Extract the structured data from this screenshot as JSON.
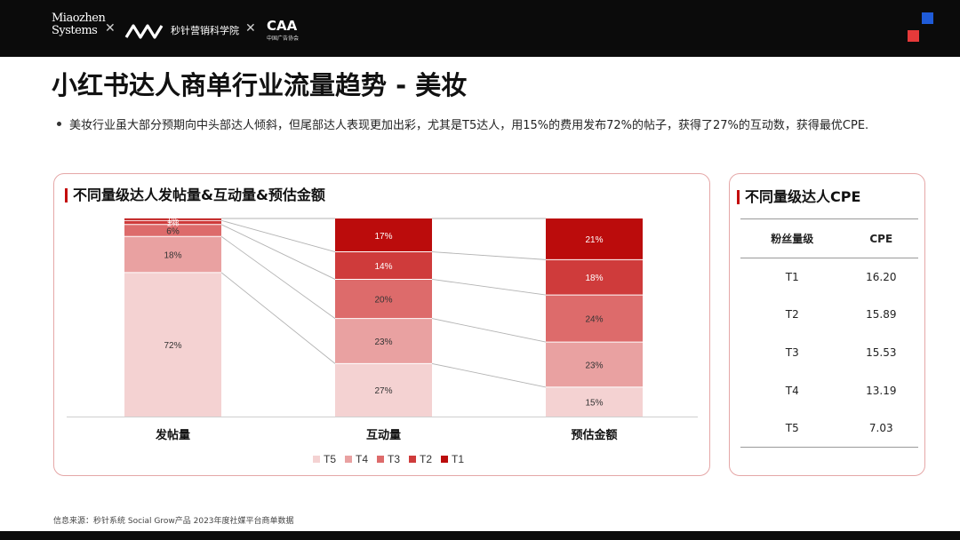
{
  "brand": {
    "miaozhen": "Miaozhen Systems",
    "academy": "秒针营销科学院",
    "caa": "CAA",
    "caa_sub": "中国广告协会"
  },
  "title": "小红书达人商单行业流量趋势 - 美妆",
  "bullet": "美妆行业虽大部分预期向中头部达人倾斜，但尾部达人表现更加出彩，尤其是T5达人，用15%的费用发布72%的帖子，获得了27%的互动数，获得最优CPE.",
  "left_card_title": "不同量级达人发帖量&互动量&预估金额",
  "right_card_title": "不同量级达人CPE",
  "chart_data": [
    {
      "type": "bar",
      "stacked": true,
      "percent": true,
      "categories": [
        "发帖量",
        "互动量",
        "预估金额"
      ],
      "series": [
        {
          "name": "T5",
          "values": [
            72,
            27,
            15
          ],
          "color": "#f4d2d2"
        },
        {
          "name": "T4",
          "values": [
            18,
            23,
            23
          ],
          "color": "#e9a1a1"
        },
        {
          "name": "T3",
          "values": [
            6,
            20,
            24
          ],
          "color": "#dd6b6b"
        },
        {
          "name": "T2",
          "values": [
            2,
            14,
            18
          ],
          "color": "#cf3b3b"
        },
        {
          "name": "T1",
          "values": [
            1,
            17,
            21
          ],
          "color": "#bb0c0c"
        }
      ],
      "labels": [
        [
          "72%",
          "27%",
          "15%"
        ],
        [
          "18%",
          "23%",
          "23%"
        ],
        [
          "6%",
          "20%",
          "24%"
        ],
        [
          "2%",
          "14%",
          "18%"
        ],
        [
          "1%",
          "17%",
          "21%"
        ]
      ],
      "legend_position": "bottom",
      "grid": false
    },
    {
      "type": "table",
      "columns": [
        "粉丝量级",
        "CPE"
      ],
      "rows": [
        [
          "T1",
          "16.20"
        ],
        [
          "T2",
          "15.89"
        ],
        [
          "T3",
          "15.53"
        ],
        [
          "T4",
          "13.19"
        ],
        [
          "T5",
          "7.03"
        ]
      ]
    }
  ],
  "source": "信息来源：秒针系统  Social Grow产品  2023年度社媒平台商单数据"
}
